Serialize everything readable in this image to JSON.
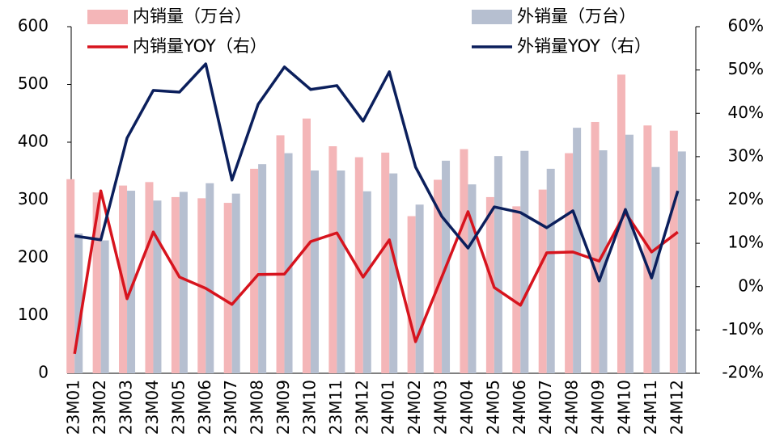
{
  "chart_data": {
    "type": "bar-line",
    "categories": [
      "23M01",
      "23M02",
      "23M03",
      "23M04",
      "23M05",
      "23M06",
      "23M07",
      "23M08",
      "23M09",
      "23M10",
      "23M11",
      "23M12",
      "24M01",
      "24M02",
      "24M03",
      "24M04",
      "24M05",
      "24M06",
      "24M07",
      "24M08",
      "24M09",
      "24M10",
      "24M11",
      "24M12"
    ],
    "series": [
      {
        "name": "内销量（万台）",
        "type": "bar",
        "color": "#f4b6b8",
        "values": [
          336,
          313,
          325,
          331,
          305,
          303,
          295,
          354,
          412,
          441,
          393,
          374,
          382,
          272,
          335,
          388,
          305,
          289,
          318,
          381,
          435,
          517,
          429,
          420
        ]
      },
      {
        "name": "外销量（万台）",
        "type": "bar",
        "color": "#b6bfd0",
        "values": [
          242,
          230,
          316,
          299,
          314,
          329,
          311,
          362,
          381,
          351,
          351,
          315,
          346,
          292,
          368,
          327,
          376,
          385,
          354,
          425,
          386,
          413,
          357,
          384
        ]
      },
      {
        "name": "内销量YOY（右）",
        "type": "line",
        "axis": "y2",
        "color": "#d7141e",
        "values": [
          -15.5,
          22.1,
          -2.8,
          12.6,
          2.2,
          -0.4,
          -4.1,
          2.8,
          2.9,
          10.4,
          12.4,
          2.2,
          10.8,
          -12.7,
          2.2,
          17.3,
          -0.2,
          -4.3,
          7.8,
          8.0,
          5.9,
          17.1,
          8.0,
          12.6
        ]
      },
      {
        "name": "外销量YOY（右）",
        "type": "line",
        "axis": "y2",
        "color": "#0b1f5c",
        "values": [
          11.7,
          10.8,
          34.3,
          45.3,
          44.9,
          51.4,
          24.6,
          42.1,
          50.7,
          45.5,
          46.4,
          38.2,
          49.6,
          27.6,
          16.2,
          8.9,
          18.4,
          17.1,
          13.6,
          17.5,
          1.3,
          17.8,
          2.0,
          22.1
        ]
      }
    ],
    "ylim": [
      0,
      600
    ],
    "yticks": [
      0,
      100,
      200,
      300,
      400,
      500,
      600
    ],
    "y2lim": [
      -20,
      60
    ],
    "y2ticks": [
      {
        "value": -20,
        "label": "-20%"
      },
      {
        "value": -10,
        "label": "-10%"
      },
      {
        "value": 0,
        "label": "0%"
      },
      {
        "value": 10,
        "label": "10%"
      },
      {
        "value": 20,
        "label": "20%"
      },
      {
        "value": 30,
        "label": "30%"
      },
      {
        "value": 40,
        "label": "40%"
      },
      {
        "value": 50,
        "label": "50%"
      },
      {
        "value": 60,
        "label": "60%"
      }
    ],
    "grid": false
  }
}
